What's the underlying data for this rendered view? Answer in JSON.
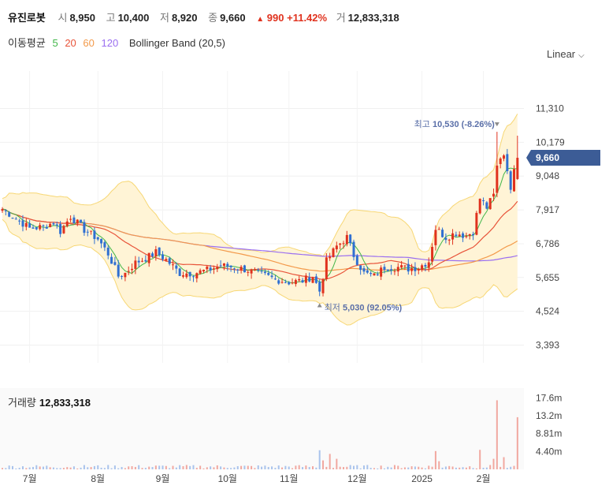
{
  "header": {
    "name": "유진로봇",
    "open_label": "시",
    "open": "8,950",
    "high_label": "고",
    "high": "10,400",
    "low_label": "저",
    "low": "8,920",
    "close_label": "종",
    "close": "9,660",
    "change_arrow": "▲",
    "change": "990",
    "change_pct": "+11.42%",
    "volume_label": "거",
    "volume": "12,833,318"
  },
  "indicators": {
    "label": "이동평균",
    "ma": [
      {
        "name": "5",
        "color": "#41b649"
      },
      {
        "name": "20",
        "color": "#e8543a"
      },
      {
        "name": "60",
        "color": "#f39a4b"
      },
      {
        "name": "120",
        "color": "#9a6ef0"
      }
    ],
    "bollinger": "Bollinger Band (20,5)"
  },
  "scale_selector": {
    "label": "Linear"
  },
  "volume_panel": {
    "label": "거래량",
    "value": "12,833,318"
  },
  "annotations": {
    "max_label": "최고",
    "max_value": "10,530 (-8.26%)",
    "min_label": "최저",
    "min_value": "5,030 (92.05%)"
  },
  "colors": {
    "up": "#e0321e",
    "down": "#2f6fd1",
    "band_fill": "#fff4d6",
    "band_line": "#f7d774",
    "current_badge": "#3c5c96"
  },
  "chart_data": {
    "type": "candlestick",
    "y_ticks": [
      11310,
      10179,
      9048,
      7917,
      6786,
      5655,
      4524,
      3393
    ],
    "ylim": [
      2800,
      12300
    ],
    "x_ticks": [
      {
        "label": "7월",
        "i": 8
      },
      {
        "label": "8월",
        "i": 28
      },
      {
        "label": "9월",
        "i": 47
      },
      {
        "label": "10월",
        "i": 66
      },
      {
        "label": "11월",
        "i": 84
      },
      {
        "label": "12월",
        "i": 104
      },
      {
        "label": "2025",
        "i": 123
      },
      {
        "label": "2월",
        "i": 141
      }
    ],
    "current_price": "9,660",
    "current_value": 9660,
    "max_point": {
      "i": 145,
      "value": 10530
    },
    "min_point": {
      "i": 93,
      "value": 5030
    },
    "candle_count": 152,
    "keypoints": [
      [
        0,
        7950
      ],
      [
        5,
        7550
      ],
      [
        8,
        7300
      ],
      [
        12,
        7350
      ],
      [
        15,
        7500
      ],
      [
        17,
        7200
      ],
      [
        20,
        7700
      ],
      [
        24,
        7250
      ],
      [
        28,
        6950
      ],
      [
        31,
        6450
      ],
      [
        34,
        5700
      ],
      [
        36,
        5800
      ],
      [
        39,
        6150
      ],
      [
        42,
        6300
      ],
      [
        45,
        6500
      ],
      [
        48,
        6250
      ],
      [
        52,
        5800
      ],
      [
        56,
        5800
      ],
      [
        60,
        5900
      ],
      [
        64,
        6050
      ],
      [
        68,
        6000
      ],
      [
        72,
        5900
      ],
      [
        76,
        5750
      ],
      [
        80,
        5600
      ],
      [
        84,
        5500
      ],
      [
        88,
        5550
      ],
      [
        91,
        5700
      ],
      [
        93,
        5200
      ],
      [
        95,
        6200
      ],
      [
        98,
        6700
      ],
      [
        101,
        7000
      ],
      [
        103,
        6400
      ],
      [
        106,
        5800
      ],
      [
        109,
        5700
      ],
      [
        112,
        6000
      ],
      [
        116,
        6000
      ],
      [
        119,
        5950
      ],
      [
        122,
        6000
      ],
      [
        125,
        6200
      ],
      [
        127,
        7300
      ],
      [
        130,
        7000
      ],
      [
        133,
        7150
      ],
      [
        136,
        7050
      ],
      [
        138,
        7200
      ],
      [
        140,
        8300
      ],
      [
        142,
        8000
      ],
      [
        144,
        8400
      ],
      [
        145,
        9400
      ],
      [
        147,
        9800
      ],
      [
        149,
        8700
      ],
      [
        151,
        9660
      ]
    ],
    "volume_ticks": [
      "17.6m",
      "13.2m",
      "8.81m",
      "4.40m"
    ],
    "volume_max": 20000000,
    "volume_spikes": [
      {
        "i": 93,
        "v": 4700000
      },
      {
        "i": 94,
        "v": 2200000
      },
      {
        "i": 96,
        "v": 3800000
      },
      {
        "i": 98,
        "v": 2600000
      },
      {
        "i": 127,
        "v": 4500000
      },
      {
        "i": 128,
        "v": 2000000
      },
      {
        "i": 140,
        "v": 4800000
      },
      {
        "i": 144,
        "v": 2600000
      },
      {
        "i": 145,
        "v": 17000000
      },
      {
        "i": 147,
        "v": 3000000
      },
      {
        "i": 151,
        "v": 12833318
      }
    ]
  }
}
